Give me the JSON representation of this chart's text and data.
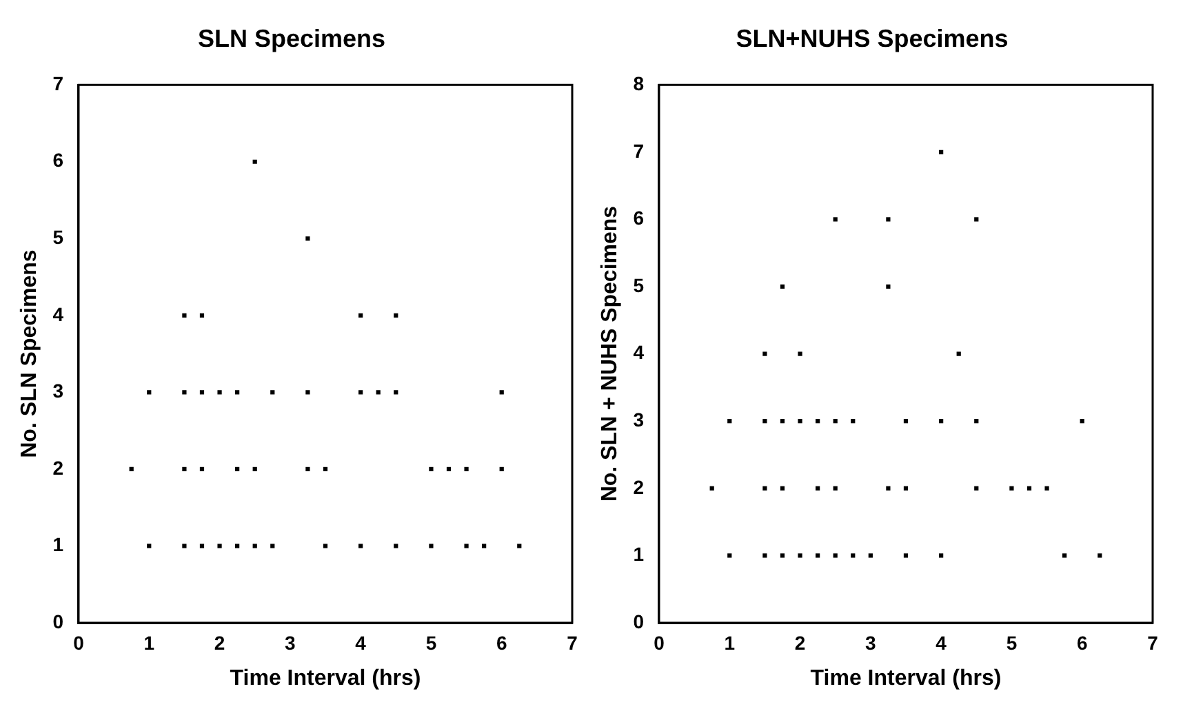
{
  "chart_data": [
    {
      "type": "scatter",
      "title": "SLN Specimens",
      "xlabel": "Time Interval (hrs)",
      "ylabel": "No. SLN Specimens",
      "xlim": [
        0,
        7
      ],
      "xticks": [
        0,
        1,
        2,
        3,
        4,
        5,
        6,
        7
      ],
      "ylim": [
        0,
        7
      ],
      "yticks": [
        0,
        1,
        2,
        3,
        4,
        5,
        6,
        7
      ],
      "grid": false,
      "legend": false,
      "marker": "square",
      "series": [
        {
          "color": "#000000",
          "x": [
            2.5,
            3.25,
            1.5,
            1.75,
            4,
            4.5,
            1,
            1.5,
            1.75,
            2,
            2.25,
            2.75,
            3.25,
            4,
            4.25,
            4.5,
            6,
            0.75,
            1.5,
            1.75,
            2.25,
            2.5,
            3.25,
            3.5,
            5,
            5.25,
            5.5,
            6,
            1,
            1.5,
            1.75,
            2,
            2.25,
            2.5,
            2.75,
            3.5,
            4,
            4.5,
            5,
            5.5,
            5.75,
            6.25
          ],
          "values": [
            6,
            5,
            4,
            4,
            4,
            4,
            3,
            3,
            3,
            3,
            3,
            3,
            3,
            3,
            3,
            3,
            3,
            2,
            2,
            2,
            2,
            2,
            2,
            2,
            2,
            2,
            2,
            2,
            1,
            1,
            1,
            1,
            1,
            1,
            1,
            1,
            1,
            1,
            1,
            1,
            1,
            1
          ]
        }
      ]
    },
    {
      "type": "scatter",
      "title": "SLN+NUHS Specimens",
      "xlabel": "Time Interval (hrs)",
      "ylabel": "No. SLN + NUHS Specimens",
      "xlim": [
        0,
        7
      ],
      "xticks": [
        0,
        1,
        2,
        3,
        4,
        5,
        6,
        7
      ],
      "ylim": [
        0,
        8
      ],
      "yticks": [
        0,
        1,
        2,
        3,
        4,
        5,
        6,
        7,
        8
      ],
      "grid": false,
      "legend": false,
      "marker": "square",
      "series": [
        {
          "color": "#000000",
          "x": [
            4,
            2.5,
            3.25,
            4.5,
            1.75,
            3.25,
            1.5,
            2,
            4.25,
            1,
            1.5,
            1.75,
            2,
            2.25,
            2.5,
            2.75,
            3.5,
            4,
            4.5,
            6,
            0.75,
            1.5,
            1.75,
            2.25,
            2.5,
            3.25,
            3.5,
            4.5,
            5,
            5.25,
            5.5,
            1,
            1.5,
            1.75,
            2,
            2.25,
            2.5,
            2.75,
            3,
            3.5,
            4,
            5.75,
            6.25
          ],
          "values": [
            7,
            6,
            6,
            6,
            5,
            5,
            4,
            4,
            4,
            3,
            3,
            3,
            3,
            3,
            3,
            3,
            3,
            3,
            3,
            3,
            2,
            2,
            2,
            2,
            2,
            2,
            2,
            2,
            2,
            2,
            2,
            1,
            1,
            1,
            1,
            1,
            1,
            1,
            1,
            1,
            1,
            1,
            1
          ]
        }
      ]
    }
  ]
}
